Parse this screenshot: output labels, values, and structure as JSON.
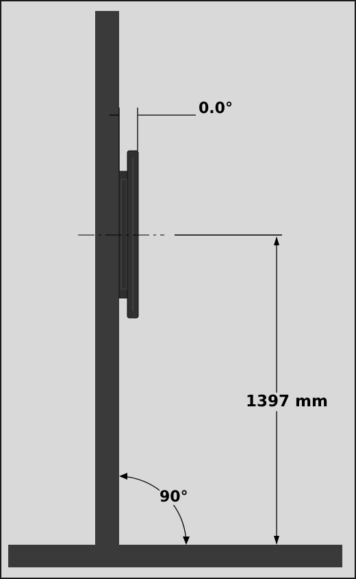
{
  "diagram": {
    "tilt_angle_label": "0.0°",
    "center_height_label": "1397 mm",
    "floor_angle_label": "90°"
  },
  "colors": {
    "background": "#d9d9d9",
    "structure": "#3a3a3a",
    "mount_plate": "#2e2e2e",
    "dimension_line": "#000000",
    "frame": "#1a1a1a"
  }
}
